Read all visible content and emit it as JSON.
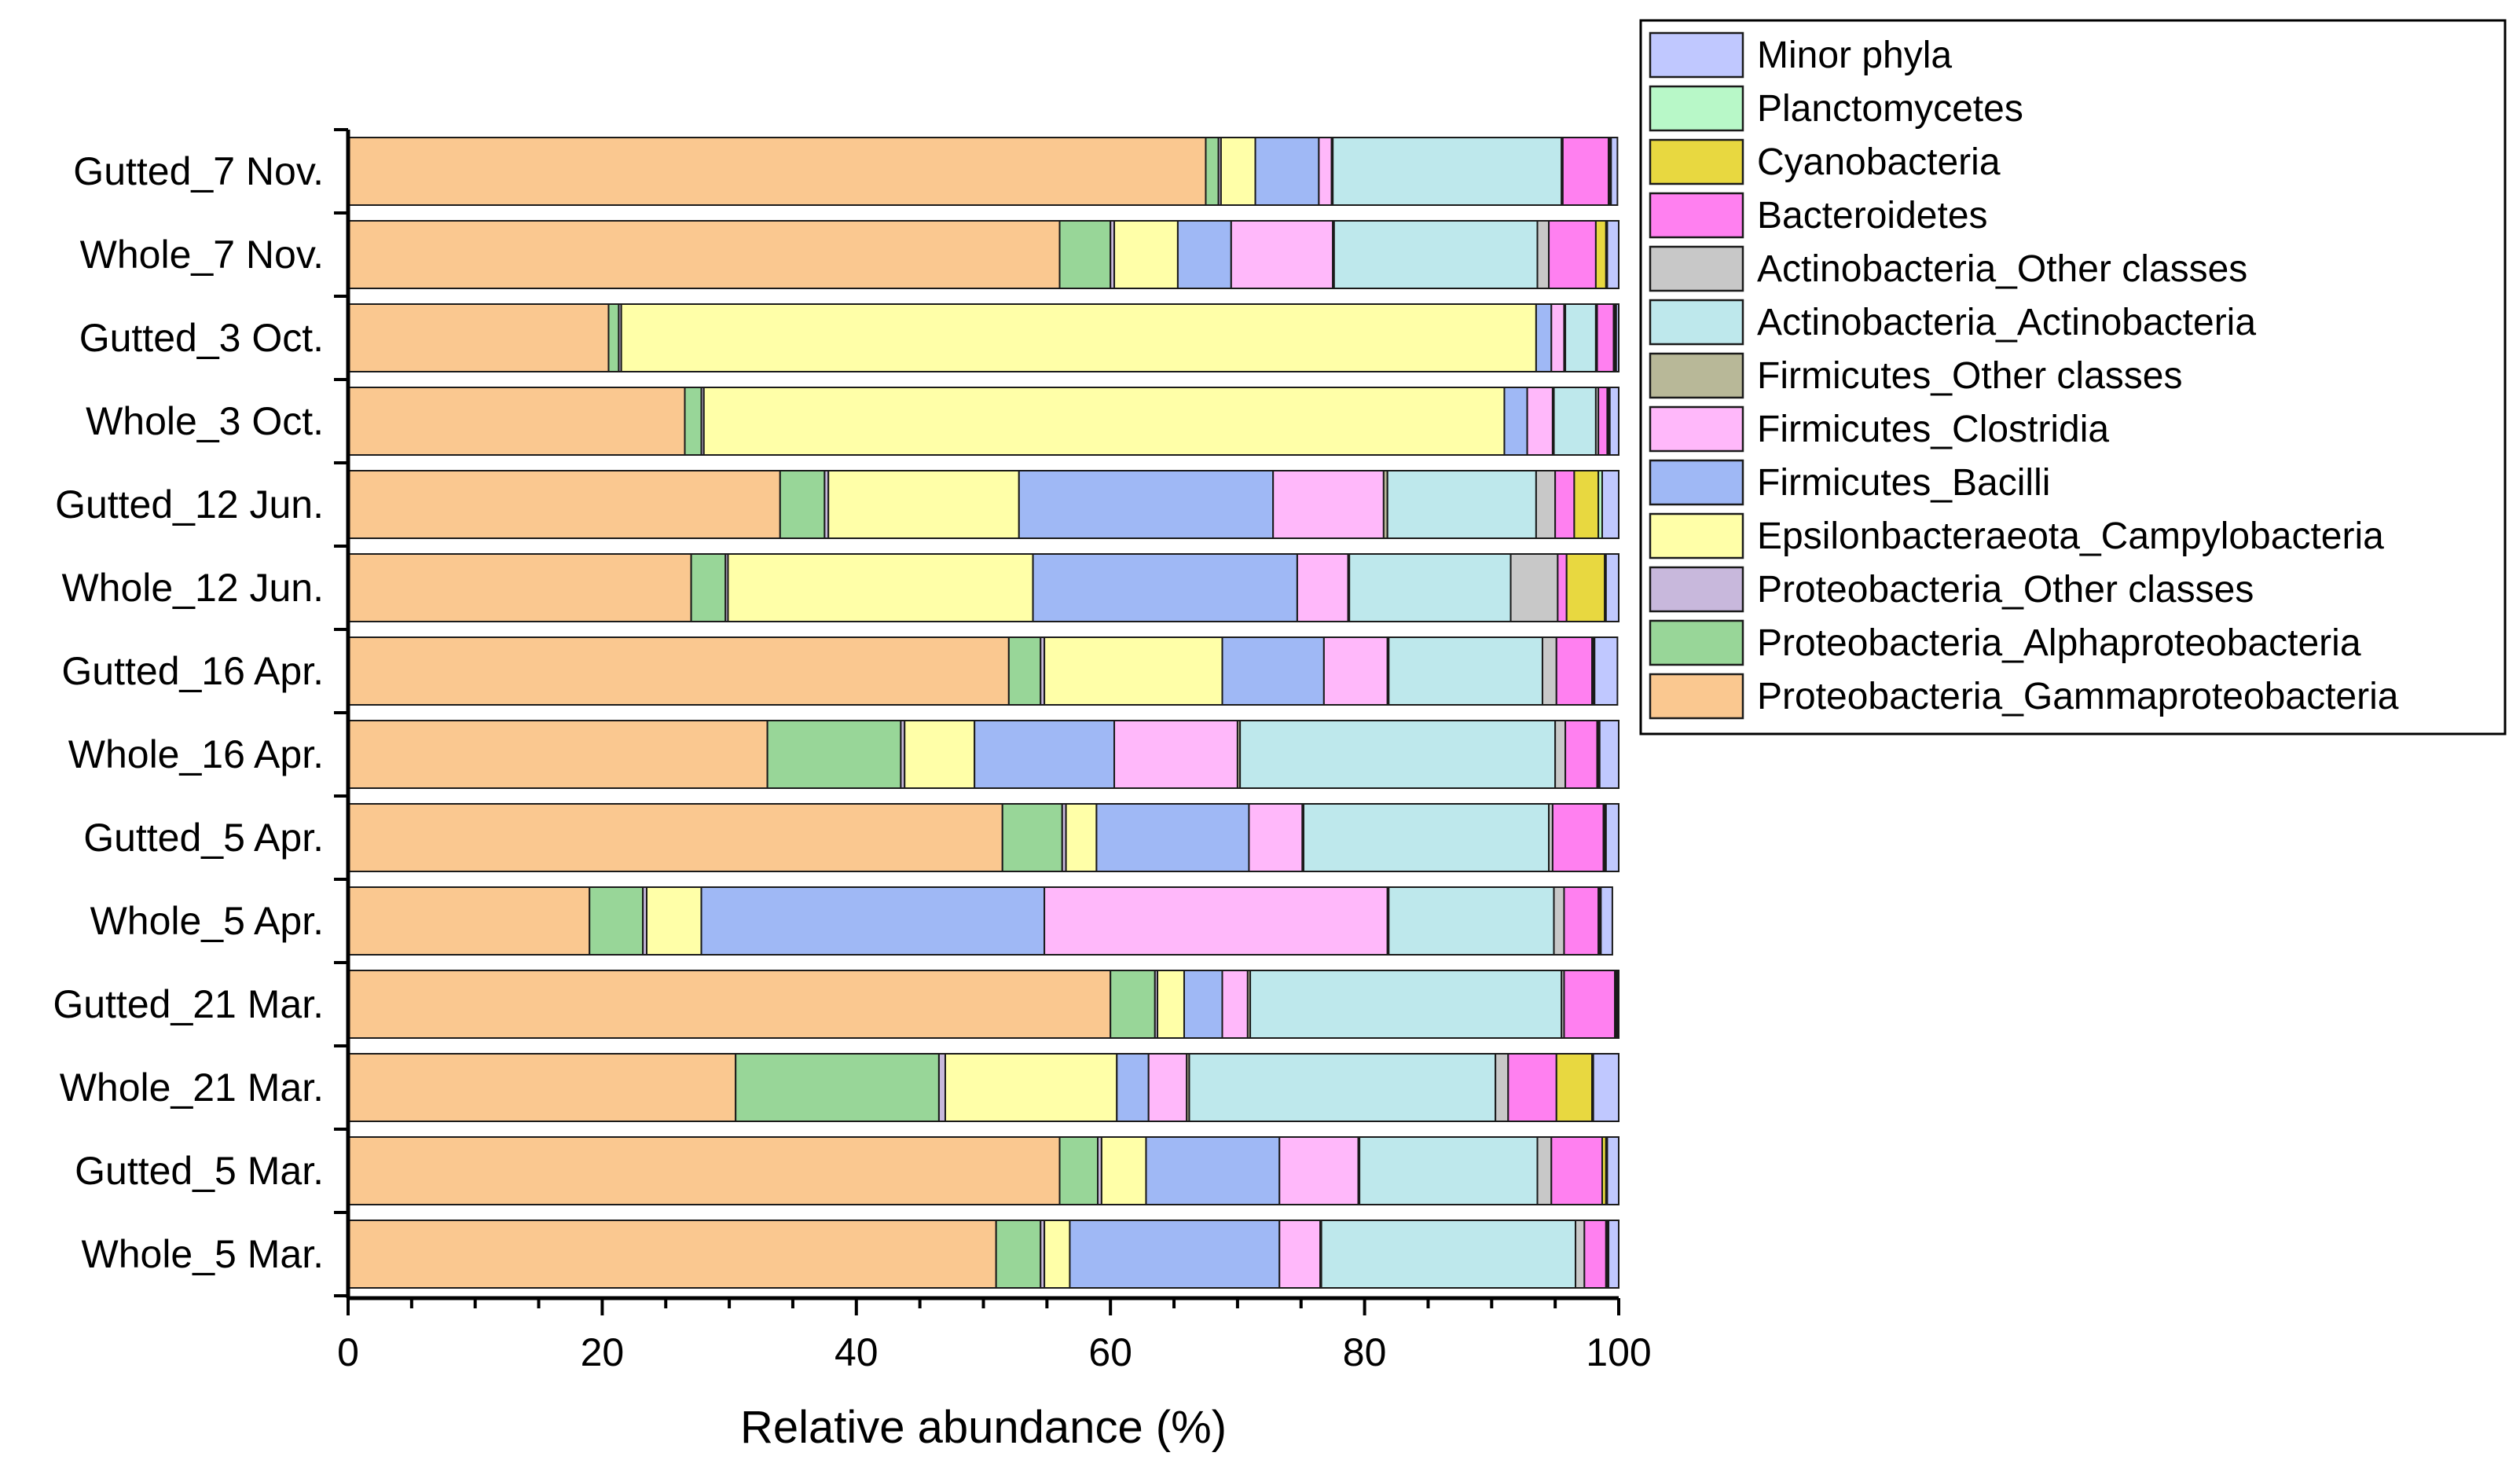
{
  "chart_data": {
    "type": "bar",
    "orientation": "horizontal",
    "stacked": true,
    "title": "",
    "xlabel": "Relative abundance (%)",
    "ylabel": "",
    "xlim": [
      0,
      100
    ],
    "xticks": [
      "0",
      "20",
      "40",
      "60",
      "80",
      "100"
    ],
    "legend_position": "top-right, outside plot",
    "categories": [
      "Gutted_7 Nov.",
      "Whole_7 Nov.",
      "Gutted_3 Oct.",
      "Whole_3 Oct.",
      "Gutted_12 Jun.",
      "Whole_12 Jun.",
      "Gutted_16 Apr.",
      "Whole_16 Apr.",
      "Gutted_5 Apr.",
      "Whole_5 Apr.",
      "Gutted_21 Mar.",
      "Whole_21 Mar.",
      "Gutted_5 Mar.",
      "Whole_5 Mar."
    ],
    "series": [
      {
        "name": "Proteobacteria_Gammaproteobacteria",
        "color": "#FAC890",
        "values": [
          67.5,
          56.0,
          20.5,
          26.5,
          34.0,
          27.0,
          52.0,
          33.0,
          51.5,
          19.0,
          60.0,
          30.5,
          56.0,
          51.0
        ]
      },
      {
        "name": "Proteobacteria_Alphaproteobacteria",
        "color": "#98D698",
        "values": [
          1.0,
          4.0,
          0.8,
          1.3,
          3.5,
          2.7,
          2.5,
          10.5,
          4.7,
          4.2,
          3.5,
          16.0,
          3.0,
          3.5
        ]
      },
      {
        "name": "Proteobacteria_Other classes",
        "color": "#C8B8DC",
        "values": [
          0.2,
          0.3,
          0.2,
          0.2,
          0.3,
          0.2,
          0.3,
          0.3,
          0.3,
          0.3,
          0.2,
          0.5,
          0.3,
          0.3
        ]
      },
      {
        "name": "Epsilonbacteraeota_Campylobacteria",
        "color": "#FFFFA8",
        "values": [
          2.7,
          5.0,
          72.0,
          63.0,
          15.0,
          24.0,
          14.0,
          5.5,
          2.4,
          4.3,
          2.1,
          13.5,
          3.5,
          2.0
        ]
      },
      {
        "name": "Firmicutes_Bacilli",
        "color": "#9FB8F5",
        "values": [
          5.0,
          4.2,
          1.2,
          1.8,
          20.0,
          20.8,
          8.0,
          11.0,
          12.0,
          27.0,
          3.0,
          2.5,
          10.5,
          16.5
        ]
      },
      {
        "name": "Firmicutes_Clostridia",
        "color": "#FFB8FA",
        "values": [
          1.0,
          8.0,
          1.0,
          2.0,
          8.7,
          4.0,
          5.0,
          9.7,
          4.2,
          27.0,
          2.0,
          3.0,
          6.2,
          3.2
        ]
      },
      {
        "name": "Firmicutes_Other classes",
        "color": "#B8B898",
        "values": [
          0.1,
          0.1,
          0.1,
          0.1,
          0.3,
          0.1,
          0.1,
          0.2,
          0.1,
          0.1,
          0.2,
          0.2,
          0.1,
          0.1
        ]
      },
      {
        "name": "Actinobacteria_Actinobacteria",
        "color": "#BEE8EC",
        "values": [
          18.0,
          16.0,
          2.4,
          3.3,
          11.7,
          12.7,
          12.1,
          24.8,
          19.3,
          13.0,
          24.5,
          24.1,
          14.0,
          20.0
        ]
      },
      {
        "name": "Actinobacteria_Other classes",
        "color": "#C8C8C8",
        "values": [
          0.1,
          0.9,
          0.1,
          0.2,
          1.5,
          3.7,
          1.1,
          0.8,
          0.3,
          0.8,
          0.2,
          1.0,
          1.1,
          0.7
        ]
      },
      {
        "name": "Bacteroidetes",
        "color": "#FF80F0",
        "values": [
          3.6,
          3.7,
          1.3,
          0.7,
          1.5,
          0.7,
          2.8,
          2.5,
          4.0,
          2.7,
          4.0,
          3.8,
          4.0,
          1.7
        ]
      },
      {
        "name": "Cyanobacteria",
        "color": "#E8D840",
        "values": [
          0.1,
          0.8,
          0.1,
          0.1,
          1.9,
          3.0,
          0.1,
          0.1,
          0.1,
          0.1,
          0.1,
          2.8,
          0.3,
          0.1
        ]
      },
      {
        "name": "Planctomycetes",
        "color": "#B8F8C8",
        "values": [
          0.1,
          0.1,
          0.1,
          0.1,
          0.3,
          0.1,
          0.1,
          0.1,
          0.1,
          0.1,
          0.1,
          0.1,
          0.1,
          0.1
        ]
      },
      {
        "name": "Minor phyla",
        "color": "#C0C8FF",
        "values": [
          0.5,
          0.9,
          0.2,
          0.7,
          1.3,
          1.0,
          1.8,
          1.5,
          1.0,
          0.9,
          0.1,
          2.0,
          0.9,
          0.8
        ]
      }
    ],
    "legend_order": [
      "Minor phyla",
      "Planctomycetes",
      "Cyanobacteria",
      "Bacteroidetes",
      "Actinobacteria_Other classes",
      "Actinobacteria_Actinobacteria",
      "Firmicutes_Other classes",
      "Firmicutes_Clostridia",
      "Firmicutes_Bacilli",
      "Epsilonbacteraeota_Campylobacteria",
      "Proteobacteria_Other classes",
      "Proteobacteria_Alphaproteobacteria",
      "Proteobacteria_Gammaproteobacteria"
    ]
  }
}
